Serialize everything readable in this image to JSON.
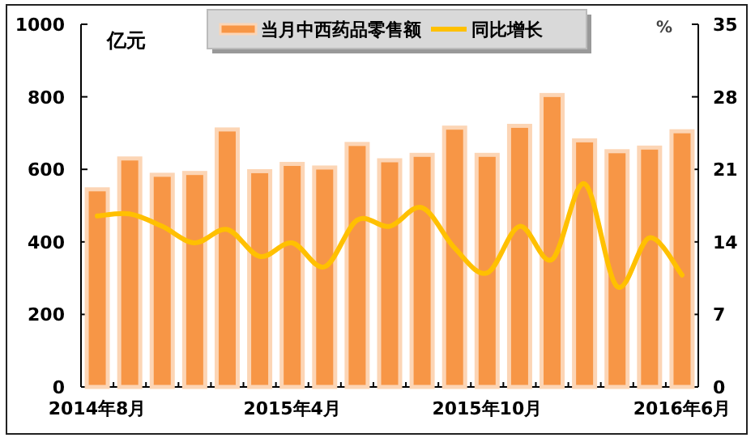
{
  "chart_data": {
    "type": "bar",
    "categories": [
      "2014年8月",
      null,
      null,
      null,
      null,
      null,
      "2015年4月",
      null,
      null,
      null,
      null,
      null,
      "2015年10月",
      null,
      null,
      null,
      null,
      null,
      "2016年6月"
    ],
    "series": [
      {
        "name": "当月中西药品零售额",
        "color": "#f79646",
        "values": [
          545,
          630,
          585,
          590,
          710,
          595,
          615,
          605,
          670,
          625,
          640,
          715,
          640,
          720,
          805,
          680,
          650,
          660,
          705
        ]
      },
      {
        "name": "同比增长",
        "type": "line",
        "axis": "y2",
        "color": "#ffc000",
        "values": [
          16.5,
          16.7,
          15.5,
          13.9,
          15.2,
          12.6,
          13.9,
          11.6,
          16.1,
          15.5,
          17.3,
          13.4,
          11.0,
          15.5,
          12.3,
          19.6,
          9.7,
          14.4,
          10.8
        ]
      }
    ],
    "ylabel": "亿元",
    "y2label": "%",
    "ylim": [
      0,
      1000
    ],
    "yticks": [
      0,
      200,
      400,
      600,
      800,
      1000
    ],
    "y2lim": [
      0,
      35
    ],
    "y2ticks": [
      0,
      7,
      14,
      21,
      28,
      35
    ],
    "legend": "top"
  }
}
